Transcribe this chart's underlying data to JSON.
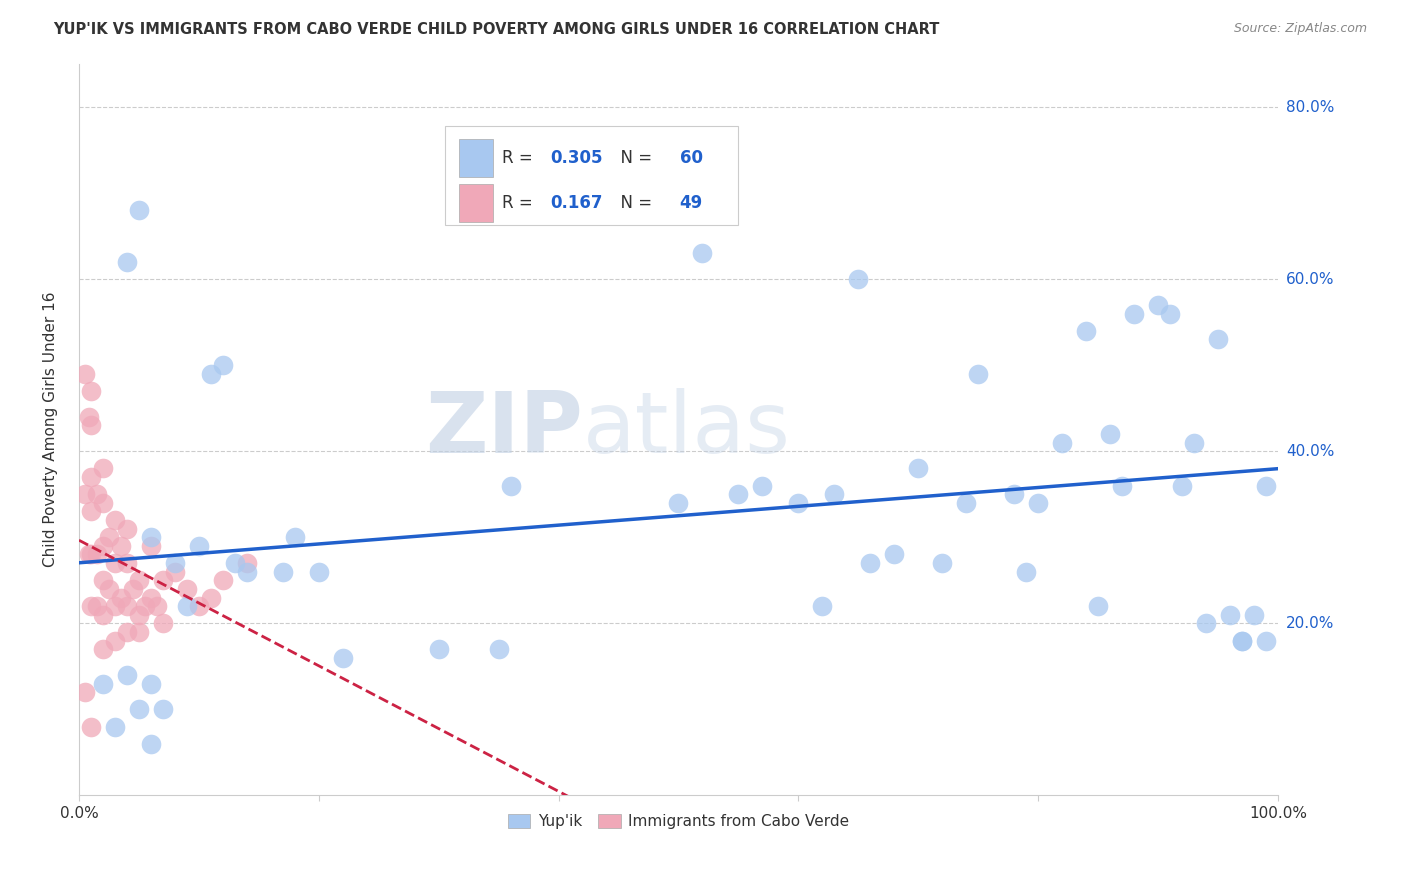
{
  "title": "YUP'IK VS IMMIGRANTS FROM CABO VERDE CHILD POVERTY AMONG GIRLS UNDER 16 CORRELATION CHART",
  "source": "Source: ZipAtlas.com",
  "xlabel": "",
  "ylabel": "Child Poverty Among Girls Under 16",
  "xlim": [
    0,
    1.0
  ],
  "ylim": [
    0,
    0.85
  ],
  "xtick_positions": [
    0.0,
    0.2,
    0.4,
    0.6,
    0.8,
    1.0
  ],
  "xticklabels": [
    "0.0%",
    "",
    "",
    "",
    "",
    "100.0%"
  ],
  "ytick_positions": [
    0.2,
    0.4,
    0.6,
    0.8
  ],
  "ytick_labels": [
    "20.0%",
    "40.0%",
    "60.0%",
    "80.0%"
  ],
  "legend_labels": [
    "Yup'ik",
    "Immigrants from Cabo Verde"
  ],
  "blue_color": "#a8c8f0",
  "pink_color": "#f0a8b8",
  "blue_line_color": "#2060cc",
  "pink_line_color": "#cc2244",
  "R_blue": 0.305,
  "N_blue": 60,
  "R_pink": 0.167,
  "N_pink": 49,
  "watermark_zip": "ZIP",
  "watermark_atlas": "atlas",
  "blue_scatter_x": [
    0.02,
    0.03,
    0.04,
    0.05,
    0.05,
    0.06,
    0.06,
    0.07,
    0.08,
    0.09,
    0.1,
    0.11,
    0.12,
    0.13,
    0.14,
    0.17,
    0.18,
    0.2,
    0.22,
    0.3,
    0.35,
    0.36,
    0.5,
    0.52,
    0.55,
    0.57,
    0.6,
    0.62,
    0.63,
    0.65,
    0.66,
    0.68,
    0.7,
    0.72,
    0.74,
    0.75,
    0.78,
    0.79,
    0.8,
    0.82,
    0.84,
    0.85,
    0.86,
    0.87,
    0.88,
    0.9,
    0.91,
    0.92,
    0.93,
    0.94,
    0.95,
    0.96,
    0.97,
    0.97,
    0.98,
    0.99,
    0.99,
    0.04,
    0.06,
    0.53
  ],
  "blue_scatter_y": [
    0.13,
    0.08,
    0.14,
    0.1,
    0.68,
    0.13,
    0.3,
    0.1,
    0.27,
    0.22,
    0.29,
    0.49,
    0.5,
    0.27,
    0.26,
    0.26,
    0.3,
    0.26,
    0.16,
    0.17,
    0.17,
    0.36,
    0.34,
    0.63,
    0.35,
    0.36,
    0.34,
    0.22,
    0.35,
    0.6,
    0.27,
    0.28,
    0.38,
    0.27,
    0.34,
    0.49,
    0.35,
    0.26,
    0.34,
    0.41,
    0.54,
    0.22,
    0.42,
    0.36,
    0.56,
    0.57,
    0.56,
    0.36,
    0.41,
    0.2,
    0.53,
    0.21,
    0.18,
    0.18,
    0.21,
    0.18,
    0.36,
    0.62,
    0.06,
    0.7
  ],
  "pink_scatter_x": [
    0.005,
    0.005,
    0.005,
    0.008,
    0.008,
    0.01,
    0.01,
    0.01,
    0.01,
    0.01,
    0.01,
    0.01,
    0.015,
    0.015,
    0.015,
    0.02,
    0.02,
    0.02,
    0.02,
    0.02,
    0.02,
    0.025,
    0.025,
    0.03,
    0.03,
    0.03,
    0.03,
    0.035,
    0.035,
    0.04,
    0.04,
    0.04,
    0.04,
    0.045,
    0.05,
    0.05,
    0.05,
    0.055,
    0.06,
    0.06,
    0.065,
    0.07,
    0.07,
    0.08,
    0.09,
    0.1,
    0.11,
    0.12,
    0.14
  ],
  "pink_scatter_y": [
    0.49,
    0.35,
    0.12,
    0.44,
    0.28,
    0.47,
    0.43,
    0.37,
    0.33,
    0.28,
    0.22,
    0.08,
    0.35,
    0.28,
    0.22,
    0.38,
    0.34,
    0.29,
    0.25,
    0.21,
    0.17,
    0.3,
    0.24,
    0.32,
    0.27,
    0.22,
    0.18,
    0.29,
    0.23,
    0.31,
    0.27,
    0.22,
    0.19,
    0.24,
    0.25,
    0.21,
    0.19,
    0.22,
    0.29,
    0.23,
    0.22,
    0.25,
    0.2,
    0.26,
    0.24,
    0.22,
    0.23,
    0.25,
    0.27
  ],
  "background_color": "#ffffff",
  "grid_color": "#cccccc"
}
